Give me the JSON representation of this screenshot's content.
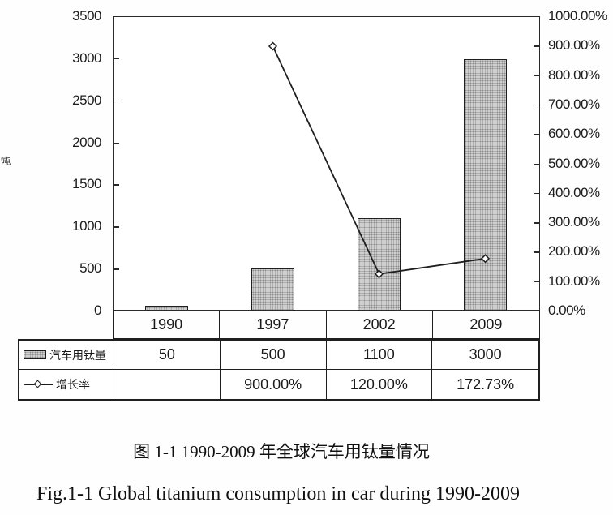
{
  "figure": {
    "caption_zh": "图 1-1 1990-2009 年全球汽车用钛量情况",
    "caption_en": "Fig.1-1 Global titanium consumption in car during 1990-2009"
  },
  "chart_data": {
    "type": "bar",
    "subtype": "bar-line-combo",
    "categories": [
      "1990",
      "1997",
      "2002",
      "2009"
    ],
    "series": [
      {
        "name": "汽车用钛量",
        "type": "bar",
        "axis": "left",
        "values": [
          50,
          500,
          1100,
          3000
        ]
      },
      {
        "name": "增长率",
        "type": "line",
        "axis": "right",
        "unit": "%",
        "values": [
          null,
          900.0,
          120.0,
          172.73
        ]
      }
    ],
    "left_axis": {
      "min": 0,
      "max": 3500,
      "step": 500,
      "unit_label": "吨",
      "ticks": [
        "0",
        "500",
        "1000",
        "1500",
        "2000",
        "2500",
        "3000",
        "3500"
      ]
    },
    "right_axis": {
      "min": 0,
      "max": 1000,
      "step": 100,
      "format": "percent",
      "ticks": [
        "0.00%",
        "100.00%",
        "200.00%",
        "300.00%",
        "400.00%",
        "500.00%",
        "600.00%",
        "700.00%",
        "800.00%",
        "900.00%",
        "1000.00%"
      ]
    },
    "table": {
      "rows": [
        {
          "legend": "bar-swatch",
          "label": "汽车用钛量",
          "values": [
            "50",
            "500",
            "1100",
            "3000"
          ]
        },
        {
          "legend": "line-marker",
          "label": "增长率",
          "values": [
            "",
            "900.00%",
            "120.00%",
            "172.73%"
          ]
        }
      ]
    },
    "grid": false,
    "legend_position": "table-left",
    "colors": {
      "bar_fill": "#cfcfcf",
      "bar_border": "#1f1f1f",
      "line": "#1f1f1f",
      "marker_fill": "#ffffff",
      "text": "#1a1a1a"
    }
  }
}
